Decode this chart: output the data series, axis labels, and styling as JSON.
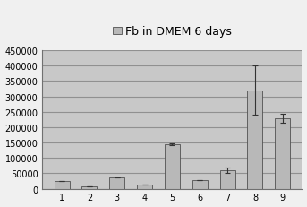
{
  "title": "Fb in DMEM 6 days",
  "categories": [
    "1",
    "2",
    "3",
    "4",
    "5",
    "6",
    "7",
    "8",
    "9"
  ],
  "values": [
    25000,
    7000,
    38000,
    12000,
    145000,
    28000,
    60000,
    320000,
    230000
  ],
  "errors": [
    0,
    0,
    0,
    0,
    3000,
    0,
    8000,
    80000,
    15000
  ],
  "bar_color": "#b8b8b8",
  "bar_edgecolor": "#505050",
  "plot_bg_color": "#c8c8c8",
  "fig_bg_color": "#f0f0f0",
  "grid_line_color": "#909090",
  "ylim": [
    0,
    450000
  ],
  "yticks": [
    0,
    50000,
    100000,
    150000,
    200000,
    250000,
    300000,
    350000,
    400000,
    450000
  ],
  "title_fontsize": 9,
  "tick_fontsize": 7,
  "legend_label": "Fb in DMEM 6 days",
  "legend_marker_color": "#b8b8b8",
  "legend_marker_edge": "#505050"
}
